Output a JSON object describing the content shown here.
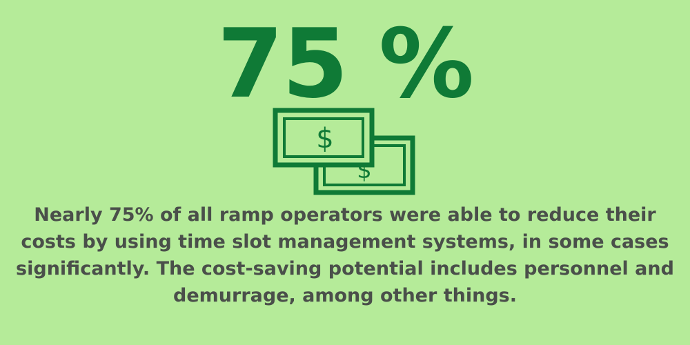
{
  "headline": "75 %",
  "description": [
    "Nearly 75% of all ramp operators were able to reduce their",
    "costs by using time slot management systems, in some cases",
    "significantly. The cost-saving potential includes personnel and",
    "demurrage, among other things."
  ],
  "icon_symbol": "$"
}
